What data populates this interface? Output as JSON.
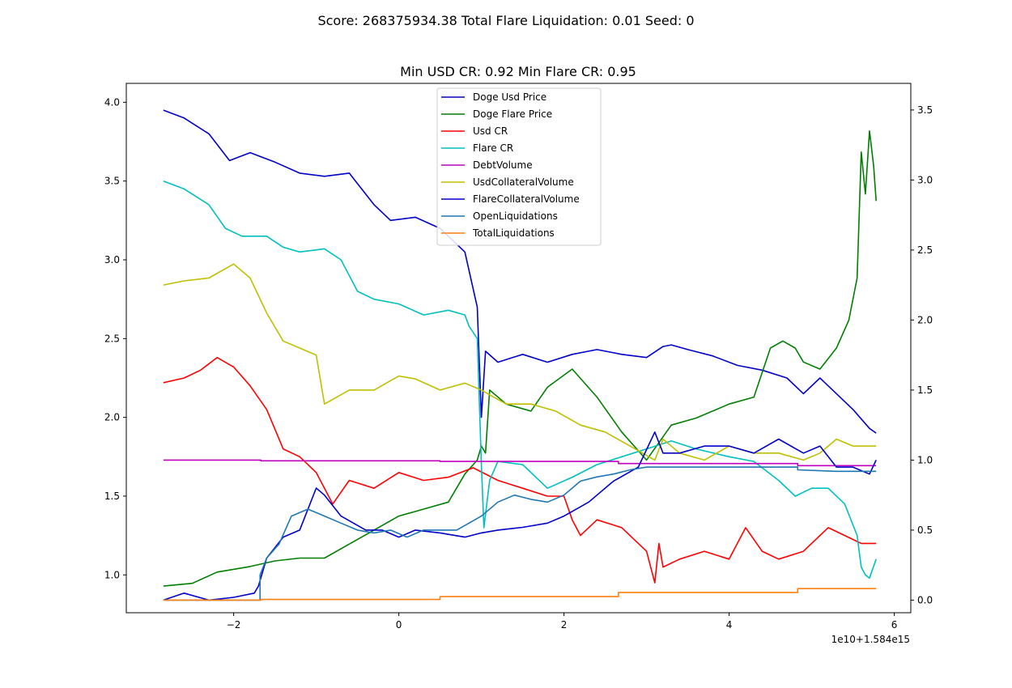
{
  "chart_data": {
    "type": "line",
    "suptitle": "Score: 268375934.38 Total Flare Liquidation: 0.01 Seed: 0",
    "title": "Min USD CR: 0.92 Min Flare CR: 0.95",
    "x_offset_label": "1e10+1.584e15",
    "xlim": [
      -3.3,
      6.2
    ],
    "x_ticks": [
      -2,
      0,
      2,
      4,
      6
    ],
    "left_axis": {
      "ylim": [
        0.76,
        4.12
      ],
      "ticks": [
        1.0,
        1.5,
        2.0,
        2.5,
        3.0,
        3.5,
        4.0
      ]
    },
    "right_axis": {
      "ylim": [
        -0.09,
        3.69
      ],
      "ticks": [
        0.0,
        0.5,
        1.0,
        1.5,
        2.0,
        2.5,
        3.0,
        3.5
      ]
    },
    "grid": false,
    "legend_position": "top-center",
    "series": [
      {
        "name": "Doge Usd Price",
        "axis": "left",
        "color": "#0000cc",
        "x": [
          -2.85,
          -2.6,
          -2.3,
          -2.05,
          -1.8,
          -1.5,
          -1.2,
          -0.9,
          -0.6,
          -0.3,
          -0.1,
          0.2,
          0.5,
          0.8,
          0.95,
          1.0,
          1.05,
          1.2,
          1.5,
          1.8,
          2.1,
          2.4,
          2.7,
          3.0,
          3.2,
          3.3,
          3.5,
          3.8,
          4.1,
          4.4,
          4.7,
          4.9,
          5.1,
          5.3,
          5.5,
          5.7,
          5.78
        ],
        "y": [
          3.95,
          3.9,
          3.8,
          3.63,
          3.68,
          3.62,
          3.55,
          3.53,
          3.55,
          3.35,
          3.25,
          3.27,
          3.2,
          3.05,
          2.7,
          2.0,
          2.42,
          2.35,
          2.4,
          2.35,
          2.4,
          2.43,
          2.4,
          2.38,
          2.45,
          2.46,
          2.43,
          2.39,
          2.33,
          2.3,
          2.25,
          2.15,
          2.25,
          2.15,
          2.05,
          1.93,
          1.9
        ]
      },
      {
        "name": "Doge Flare Price",
        "axis": "right",
        "color": "#007f00",
        "x": [
          -2.85,
          -2.5,
          -2.2,
          -1.8,
          -1.5,
          -1.2,
          -0.9,
          -0.6,
          -0.3,
          0.0,
          0.3,
          0.6,
          0.8,
          0.95,
          1.0,
          1.05,
          1.1,
          1.3,
          1.6,
          1.8,
          2.1,
          2.4,
          2.7,
          3.0,
          3.3,
          3.6,
          4.0,
          4.3,
          4.5,
          4.65,
          4.8,
          4.9,
          5.1,
          5.3,
          5.45,
          5.55,
          5.6,
          5.65,
          5.7,
          5.75,
          5.78
        ],
        "y": [
          0.1,
          0.12,
          0.2,
          0.24,
          0.28,
          0.3,
          0.3,
          0.4,
          0.5,
          0.6,
          0.65,
          0.7,
          0.9,
          1.0,
          1.1,
          1.05,
          1.5,
          1.4,
          1.35,
          1.52,
          1.65,
          1.45,
          1.2,
          1.0,
          1.25,
          1.3,
          1.4,
          1.45,
          1.8,
          1.85,
          1.8,
          1.7,
          1.65,
          1.8,
          2.0,
          2.3,
          3.2,
          2.9,
          3.35,
          3.1,
          2.85
        ]
      },
      {
        "name": "Usd CR",
        "axis": "left",
        "color": "#ff0000",
        "x": [
          -2.85,
          -2.6,
          -2.4,
          -2.2,
          -2.0,
          -1.8,
          -1.6,
          -1.4,
          -1.2,
          -1.0,
          -0.8,
          -0.6,
          -0.3,
          0.0,
          0.3,
          0.6,
          0.9,
          1.2,
          1.5,
          1.8,
          2.0,
          2.1,
          2.2,
          2.4,
          2.7,
          3.0,
          3.1,
          3.15,
          3.2,
          3.4,
          3.7,
          4.0,
          4.2,
          4.4,
          4.6,
          4.9,
          5.2,
          5.4,
          5.6,
          5.78
        ],
        "y": [
          2.22,
          2.25,
          2.3,
          2.38,
          2.32,
          2.2,
          2.05,
          1.8,
          1.75,
          1.65,
          1.45,
          1.6,
          1.55,
          1.65,
          1.6,
          1.62,
          1.68,
          1.6,
          1.55,
          1.5,
          1.5,
          1.35,
          1.25,
          1.35,
          1.3,
          1.15,
          0.95,
          1.2,
          1.05,
          1.1,
          1.15,
          1.1,
          1.3,
          1.15,
          1.1,
          1.15,
          1.3,
          1.25,
          1.2,
          1.2
        ]
      },
      {
        "name": "Flare CR",
        "axis": "left",
        "color": "#00bfbf",
        "x": [
          -2.85,
          -2.6,
          -2.3,
          -2.1,
          -1.9,
          -1.6,
          -1.4,
          -1.2,
          -0.9,
          -0.7,
          -0.5,
          -0.3,
          0.0,
          0.3,
          0.6,
          0.8,
          0.85,
          0.95,
          1.0,
          1.03,
          1.1,
          1.2,
          1.5,
          1.8,
          2.1,
          2.4,
          2.7,
          3.0,
          3.3,
          3.6,
          4.0,
          4.3,
          4.6,
          4.8,
          5.0,
          5.2,
          5.4,
          5.55,
          5.6,
          5.65,
          5.7,
          5.78
        ],
        "y": [
          3.5,
          3.45,
          3.35,
          3.2,
          3.15,
          3.15,
          3.08,
          3.05,
          3.07,
          3.0,
          2.8,
          2.75,
          2.72,
          2.65,
          2.68,
          2.65,
          2.58,
          2.5,
          1.7,
          1.3,
          1.6,
          1.72,
          1.7,
          1.55,
          1.62,
          1.7,
          1.75,
          1.8,
          1.85,
          1.8,
          1.75,
          1.72,
          1.6,
          1.5,
          1.55,
          1.55,
          1.45,
          1.25,
          1.05,
          1.0,
          0.98,
          1.1
        ]
      },
      {
        "name": "DebtVolume",
        "axis": "right",
        "color": "#bf00bf",
        "x": [
          -2.85,
          -1.67,
          -1.67,
          0.5,
          0.5,
          2.66,
          2.66,
          4.83,
          4.83,
          5.78
        ],
        "y": [
          1.0,
          1.0,
          0.995,
          0.995,
          0.99,
          0.99,
          0.975,
          0.975,
          0.96,
          0.96
        ]
      },
      {
        "name": "UsdCollateralVolume",
        "axis": "right",
        "color": "#bfbf00",
        "x": [
          -2.85,
          -2.6,
          -2.3,
          -2.0,
          -1.8,
          -1.6,
          -1.4,
          -1.2,
          -1.0,
          -0.9,
          -0.6,
          -0.3,
          0.0,
          0.2,
          0.5,
          0.8,
          1.0,
          1.3,
          1.6,
          1.9,
          2.2,
          2.5,
          2.8,
          3.1,
          3.2,
          3.4,
          3.7,
          4.0,
          4.3,
          4.6,
          4.9,
          5.1,
          5.3,
          5.5,
          5.78
        ],
        "y": [
          2.25,
          2.28,
          2.3,
          2.4,
          2.3,
          2.05,
          1.85,
          1.8,
          1.75,
          1.4,
          1.5,
          1.5,
          1.6,
          1.58,
          1.5,
          1.55,
          1.5,
          1.4,
          1.4,
          1.35,
          1.25,
          1.2,
          1.1,
          1.0,
          1.15,
          1.05,
          1.0,
          1.1,
          1.05,
          1.05,
          1.0,
          1.05,
          1.15,
          1.1,
          1.1
        ]
      },
      {
        "name": "FlareCollateralVolume",
        "axis": "right",
        "color": "#0000cc",
        "x": [
          -2.85,
          -2.6,
          -2.3,
          -2.0,
          -1.75,
          -1.7,
          -1.6,
          -1.4,
          -1.2,
          -1.0,
          -0.9,
          -0.7,
          -0.4,
          -0.2,
          0.0,
          0.2,
          0.5,
          0.8,
          1.0,
          1.2,
          1.5,
          1.8,
          2.0,
          2.3,
          2.6,
          2.9,
          3.1,
          3.2,
          3.4,
          3.7,
          4.0,
          4.3,
          4.6,
          4.9,
          5.1,
          5.3,
          5.5,
          5.7,
          5.78
        ],
        "y": [
          0.0,
          0.05,
          0.0,
          0.02,
          0.05,
          0.1,
          0.3,
          0.45,
          0.5,
          0.8,
          0.75,
          0.6,
          0.5,
          0.5,
          0.45,
          0.5,
          0.48,
          0.45,
          0.48,
          0.5,
          0.52,
          0.55,
          0.6,
          0.7,
          0.85,
          0.95,
          1.2,
          1.05,
          1.05,
          1.1,
          1.1,
          1.05,
          1.15,
          1.05,
          1.1,
          0.95,
          0.95,
          0.9,
          1.0
        ]
      },
      {
        "name": "OpenLiquidations",
        "axis": "right",
        "color": "#1f77b4",
        "x": [
          -2.85,
          -1.68,
          -1.68,
          -1.6,
          -1.45,
          -1.3,
          -1.1,
          -0.9,
          -0.7,
          -0.5,
          -0.3,
          -0.1,
          0.1,
          0.3,
          0.5,
          0.7,
          0.85,
          1.0,
          1.2,
          1.4,
          1.6,
          1.8,
          2.0,
          2.2,
          2.4,
          2.6,
          2.8,
          3.0,
          3.2,
          3.4,
          3.6,
          3.8,
          4.0,
          4.2,
          4.4,
          4.83,
          4.83,
          5.3,
          5.78
        ],
        "y": [
          0.0,
          0.0,
          0.18,
          0.3,
          0.4,
          0.6,
          0.65,
          0.6,
          0.55,
          0.5,
          0.48,
          0.5,
          0.45,
          0.5,
          0.5,
          0.5,
          0.55,
          0.6,
          0.7,
          0.75,
          0.72,
          0.7,
          0.75,
          0.85,
          0.88,
          0.9,
          0.93,
          0.95,
          0.95,
          0.95,
          0.95,
          0.95,
          0.95,
          0.95,
          0.95,
          0.95,
          0.93,
          0.92,
          0.92
        ]
      },
      {
        "name": "TotalLiquidations",
        "axis": "right",
        "color": "#ff7f0e",
        "x": [
          -2.85,
          -1.67,
          -1.67,
          0.5,
          0.5,
          2.66,
          2.66,
          4.83,
          4.83,
          5.78
        ],
        "y": [
          0.0,
          0.0,
          0.005,
          0.005,
          0.025,
          0.025,
          0.055,
          0.055,
          0.082,
          0.082
        ]
      }
    ]
  }
}
